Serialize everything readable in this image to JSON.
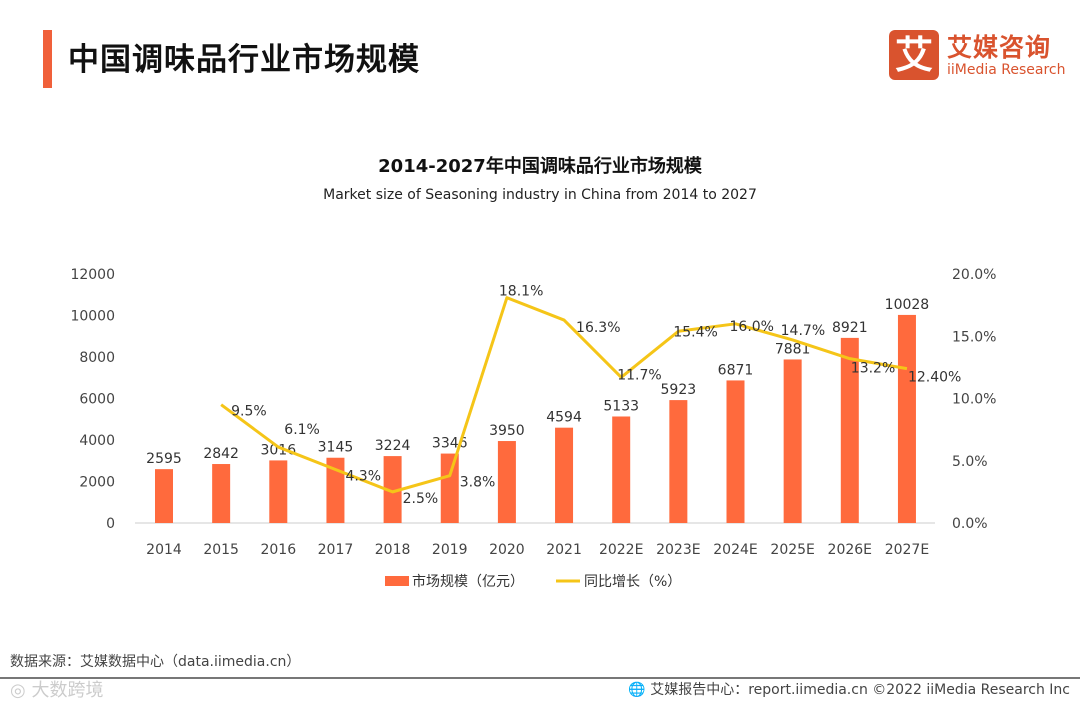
{
  "header": {
    "title": "中国调味品行业市场规模"
  },
  "logo": {
    "mark": "艾",
    "cn": "艾媒咨询",
    "en": "iiMedia Research"
  },
  "chart_data": {
    "type": "bar+line",
    "title": "2014-2027年中国调味品行业市场规模",
    "subtitle": "Market size of Seasoning industry in China from 2014 to 2027",
    "categories": [
      "2014",
      "2015",
      "2016",
      "2017",
      "2018",
      "2019",
      "2020",
      "2021",
      "2022E",
      "2023E",
      "2024E",
      "2025E",
      "2026E",
      "2027E"
    ],
    "series": [
      {
        "name": "市场规模（亿元）",
        "type": "bar",
        "axis": "left",
        "color": "#FF6A3D",
        "values": [
          2595,
          2842,
          3016,
          3145,
          3224,
          3346,
          3950,
          4594,
          5133,
          5923,
          6871,
          7881,
          8921,
          10028
        ]
      },
      {
        "name": "同比增长（%）",
        "type": "line",
        "axis": "right",
        "color": "#F5C518",
        "values": [
          null,
          9.5,
          6.1,
          4.3,
          2.5,
          3.8,
          18.1,
          16.3,
          11.7,
          15.4,
          16.0,
          14.7,
          13.2,
          12.4
        ],
        "labels": [
          "",
          "9.5%",
          "6.1%",
          "4.3%",
          "2.5%",
          "3.8%",
          "18.1%",
          "16.3%",
          "11.7%",
          "15.4%",
          "16.0%",
          "14.7%",
          "13.2%",
          "12.40%"
        ]
      }
    ],
    "yleft": {
      "min": 0,
      "max": 12000,
      "ticks": [
        "0",
        "2000",
        "4000",
        "6000",
        "8000",
        "10000",
        "12000"
      ]
    },
    "yright": {
      "min": 0,
      "max": 20,
      "ticks": [
        "0.0%",
        "5.0%",
        "10.0%",
        "15.0%",
        "20.0%"
      ]
    },
    "legend": "bottom",
    "grid": false
  },
  "source": "数据来源：艾媒数据中心（data.iimedia.cn）",
  "footer": "艾媒报告中心：report.iimedia.cn   ©2022  iiMedia Research  Inc",
  "watermark": "大数跨境"
}
